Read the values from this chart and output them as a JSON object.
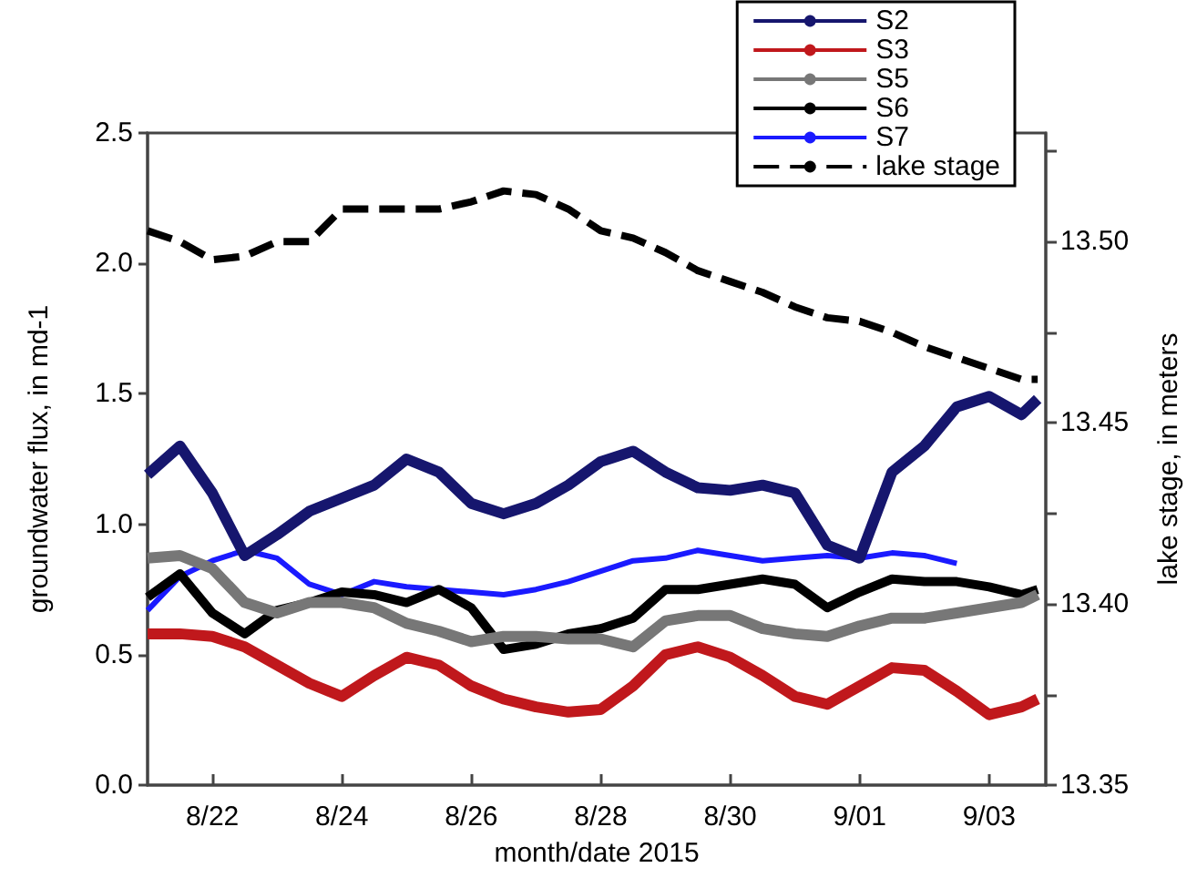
{
  "chart_data": {
    "type": "line",
    "xlabel": "month/date 2015",
    "ylabel": "groundwater flux, in md-1",
    "y2label": "lake stage, in meters",
    "x": [
      "2015-08-21T00:00",
      "2015-08-21T12:00",
      "2015-08-22T00:00",
      "2015-08-22T12:00",
      "2015-08-23T00:00",
      "2015-08-23T12:00",
      "2015-08-24T00:00",
      "2015-08-24T12:00",
      "2015-08-25T00:00",
      "2015-08-25T12:00",
      "2015-08-26T00:00",
      "2015-08-26T12:00",
      "2015-08-27T00:00",
      "2015-08-27T12:00",
      "2015-08-28T00:00",
      "2015-08-28T12:00",
      "2015-08-29T00:00",
      "2015-08-29T12:00",
      "2015-08-30T00:00",
      "2015-08-30T12:00",
      "2015-08-31T00:00",
      "2015-08-31T12:00",
      "2015-09-01T00:00",
      "2015-09-01T12:00",
      "2015-09-02T00:00",
      "2015-09-02T12:00",
      "2015-09-03T00:00",
      "2015-09-03T12:00",
      "2015-09-03T18:00"
    ],
    "series": [
      {
        "name": "S2",
        "color": "#16166e",
        "values": [
          1.19,
          1.3,
          1.12,
          0.88,
          0.96,
          1.05,
          1.1,
          1.15,
          1.25,
          1.2,
          1.08,
          1.04,
          1.08,
          1.15,
          1.24,
          1.28,
          1.2,
          1.14,
          1.13,
          1.15,
          1.12,
          0.92,
          0.87,
          1.2,
          1.3,
          1.45,
          1.49,
          1.42,
          1.48
        ]
      },
      {
        "name": "S3",
        "color": "#c0181c",
        "values": [
          0.58,
          0.58,
          0.57,
          0.53,
          0.46,
          0.39,
          0.34,
          0.42,
          0.49,
          0.46,
          0.38,
          0.33,
          0.3,
          0.28,
          0.29,
          0.38,
          0.5,
          0.53,
          0.49,
          0.42,
          0.34,
          0.31,
          0.38,
          0.45,
          0.44,
          0.36,
          0.27,
          0.3,
          0.33
        ]
      },
      {
        "name": "S5",
        "color": "#777777",
        "values": [
          0.87,
          0.88,
          0.83,
          0.7,
          0.66,
          0.7,
          0.7,
          0.68,
          0.62,
          0.59,
          0.55,
          0.57,
          0.57,
          0.56,
          0.56,
          0.53,
          0.63,
          0.65,
          0.65,
          0.6,
          0.58,
          0.57,
          0.61,
          0.64,
          0.64,
          0.66,
          0.68,
          0.7,
          0.73
        ]
      },
      {
        "name": "S6",
        "color": "#000000",
        "values": [
          0.72,
          0.81,
          0.66,
          0.58,
          0.67,
          0.7,
          0.74,
          0.73,
          0.7,
          0.75,
          0.68,
          0.52,
          0.54,
          0.58,
          0.6,
          0.64,
          0.75,
          0.75,
          0.77,
          0.79,
          0.77,
          0.68,
          0.74,
          0.79,
          0.78,
          0.78,
          0.76,
          0.73,
          0.75
        ]
      },
      {
        "name": "S7",
        "color": "#1a1aff",
        "values": [
          0.67,
          0.8,
          0.86,
          0.9,
          0.87,
          0.77,
          0.73,
          0.78,
          0.76,
          0.75,
          0.74,
          0.73,
          0.75,
          0.78,
          0.82,
          0.86,
          0.87,
          0.9,
          0.88,
          0.86,
          0.87,
          0.88,
          0.87,
          0.89,
          0.88,
          0.85,
          null,
          null,
          null
        ]
      },
      {
        "name": "lake stage",
        "color": "#000000",
        "axis": "y2",
        "line_style": "dashed",
        "values": [
          13.503,
          13.5,
          13.495,
          13.496,
          13.5,
          13.5,
          13.509,
          13.509,
          13.509,
          13.509,
          13.511,
          13.514,
          13.513,
          13.509,
          13.503,
          13.501,
          13.497,
          13.492,
          13.489,
          13.486,
          13.482,
          13.479,
          13.478,
          13.475,
          13.471,
          13.468,
          13.465,
          13.462,
          13.462
        ]
      }
    ],
    "xlim": [
      "2015-08-21T00:00",
      "2015-09-03T21:00"
    ],
    "xticks": [
      {
        "value": "2015-08-22",
        "label": "8/22"
      },
      {
        "value": "2015-08-24",
        "label": "8/24"
      },
      {
        "value": "2015-08-26",
        "label": "8/26"
      },
      {
        "value": "2015-08-28",
        "label": "8/28"
      },
      {
        "value": "2015-08-30",
        "label": "8/30"
      },
      {
        "value": "2015-09-01",
        "label": "9/01"
      },
      {
        "value": "2015-09-03",
        "label": "9/03"
      }
    ],
    "ylim": [
      0,
      2.5
    ],
    "yticks": [
      {
        "value": 0,
        "label": "0.0"
      },
      {
        "value": 0.5,
        "label": "0.5"
      },
      {
        "value": 1,
        "label": "1.0"
      },
      {
        "value": 1.5,
        "label": "1.5"
      },
      {
        "value": 2,
        "label": "2.0"
      },
      {
        "value": 2.5,
        "label": "2.5"
      }
    ],
    "y2lim": [
      13.35,
      13.53
    ],
    "y2ticks": [
      {
        "value": 13.35,
        "label": "13.35"
      },
      {
        "value": 13.375,
        "label": null
      },
      {
        "value": 13.4,
        "label": "13.40"
      },
      {
        "value": 13.425,
        "label": null
      },
      {
        "value": 13.45,
        "label": "13.45"
      },
      {
        "value": 13.475,
        "label": null
      },
      {
        "value": 13.5,
        "label": "13.50"
      },
      {
        "value": 13.525,
        "label": null
      }
    ],
    "grid": false,
    "legend": "top right",
    "marker": "none",
    "line_style": "solid"
  }
}
